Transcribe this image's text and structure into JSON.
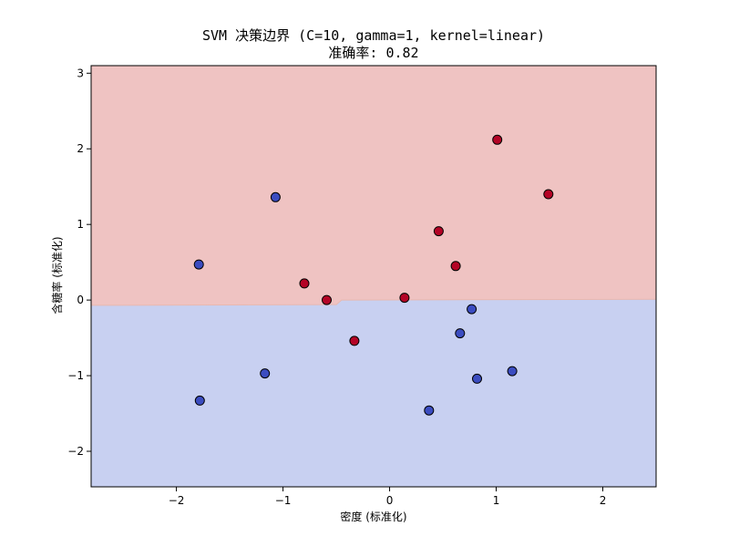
{
  "chart_data": {
    "type": "scatter",
    "title": "SVM 决策边界 (C=10, gamma=1, kernel=linear)",
    "subtitle": "准确率: 0.82",
    "xlabel": "密度 (标准化)",
    "ylabel": "含糖率 (标准化)",
    "xlim": [
      -2.8,
      2.5
    ],
    "ylim": [
      -2.47,
      3.1
    ],
    "xticks": [
      -2,
      -1,
      0,
      1,
      2
    ],
    "yticks": [
      -2,
      -1,
      0,
      1,
      2,
      3
    ],
    "grid": false,
    "legend": "none",
    "decision_boundary": [
      [
        -2.8,
        -0.07
      ],
      [
        -0.5,
        -0.06
      ],
      [
        -0.45,
        0.0
      ],
      [
        2.5,
        0.01
      ]
    ],
    "regions": {
      "upper": {
        "class": 1,
        "color": "#efc3c2"
      },
      "lower": {
        "class": 0,
        "color": "#c8d0f1"
      }
    },
    "series": [
      {
        "class": 1,
        "color": "#b40426",
        "points": [
          [
            1.01,
            2.12
          ],
          [
            1.49,
            1.4
          ],
          [
            0.46,
            0.91
          ],
          [
            0.62,
            0.45
          ],
          [
            -0.8,
            0.22
          ],
          [
            -0.59,
            0.0
          ],
          [
            0.14,
            0.03
          ],
          [
            -0.33,
            -0.54
          ]
        ]
      },
      {
        "class": 0,
        "color": "#3b4cc0",
        "points": [
          [
            -1.07,
            1.36
          ],
          [
            -1.79,
            0.47
          ],
          [
            0.77,
            -0.12
          ],
          [
            0.66,
            -0.44
          ],
          [
            0.82,
            -1.04
          ],
          [
            1.15,
            -0.94
          ],
          [
            -1.17,
            -0.97
          ],
          [
            -1.78,
            -1.33
          ],
          [
            0.37,
            -1.46
          ]
        ]
      }
    ]
  }
}
